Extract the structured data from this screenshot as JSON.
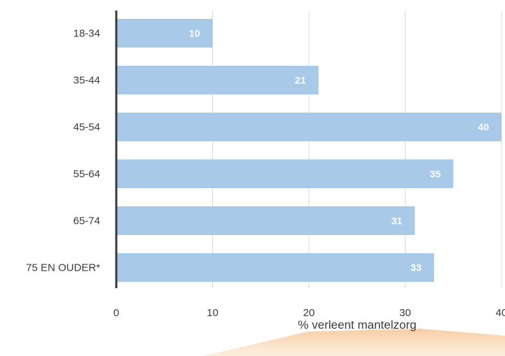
{
  "chart_data": {
    "type": "bar",
    "orientation": "horizontal",
    "categories": [
      "18-34",
      "35-44",
      "45-54",
      "55-64",
      "65-74",
      "75 EN OUDER*"
    ],
    "values": [
      10,
      21,
      40,
      35,
      31,
      33
    ],
    "data_labels": [
      "10",
      "21",
      "40",
      "35",
      "31",
      "33"
    ],
    "xlabel": "% verleent mantelzorg",
    "xticks": [
      "0",
      "10",
      "20",
      "30",
      "40"
    ],
    "xlim": [
      0,
      40
    ],
    "grid": true,
    "bar_color": "#a9c9e8",
    "gridline_color": "#d9d9d9",
    "axis_color": "#3a3a3a",
    "accent_color": "#f6c89a"
  }
}
